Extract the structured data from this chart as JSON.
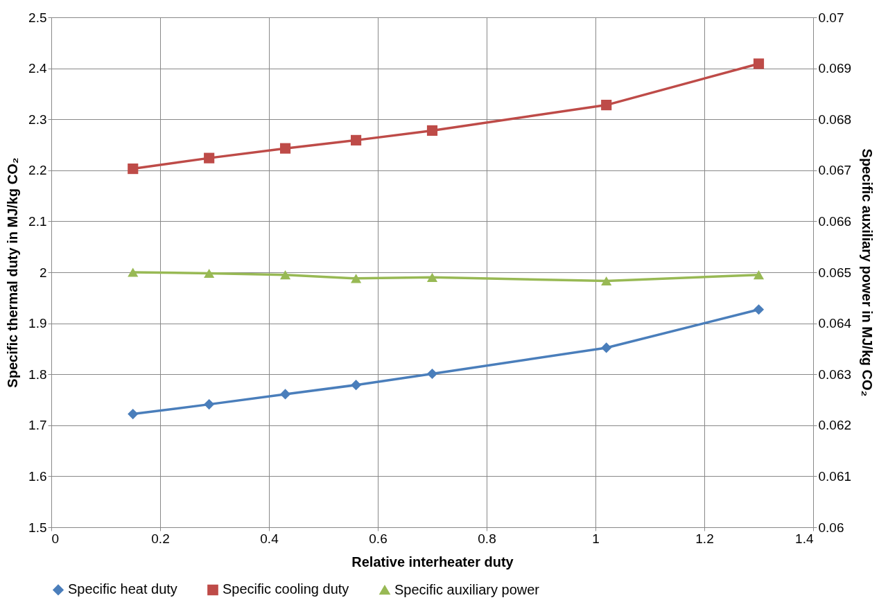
{
  "chart_data": {
    "type": "line",
    "xlabel": "Relative interheater duty",
    "ylabel": "Specific thermal duty in MJ/kg CO₂",
    "y2label": "Specific auxiliary power in MJ/kg CO₂",
    "x": [
      0.15,
      0.29,
      0.43,
      0.56,
      0.7,
      1.02,
      1.3
    ],
    "series": [
      {
        "name": "Specific heat duty",
        "color": "#4a7ebb",
        "marker": "diamond",
        "values": [
          1.722,
          1.741,
          1.761,
          1.779,
          1.801,
          1.852,
          1.927
        ]
      },
      {
        "name": "Specific cooling duty",
        "color": "#be4b48",
        "marker": "square",
        "values": [
          2.203,
          2.224,
          2.243,
          2.259,
          2.278,
          2.328,
          2.409
        ]
      },
      {
        "name": "Specific auxiliary power",
        "color": "#98b954",
        "marker": "triangle",
        "axis": "y2",
        "values": [
          0.065,
          0.06498,
          0.06495,
          0.06488,
          0.0649,
          0.06483,
          0.06495
        ]
      }
    ],
    "xlim": [
      0,
      1.4
    ],
    "xticks": [
      0,
      0.2,
      0.4,
      0.6,
      0.8,
      1,
      1.2,
      1.4
    ],
    "ylim": [
      1.5,
      2.5
    ],
    "yticks": [
      1.5,
      1.6,
      1.7,
      1.8,
      1.9,
      2,
      2.1,
      2.2,
      2.3,
      2.4,
      2.5
    ],
    "y2lim": [
      0.06,
      0.07
    ],
    "y2ticks": [
      0.06,
      0.061,
      0.062,
      0.063,
      0.064,
      0.065,
      0.066,
      0.067,
      0.068,
      0.069,
      0.07
    ],
    "grid": true,
    "legend": "bottom",
    "line_style": "solid"
  }
}
